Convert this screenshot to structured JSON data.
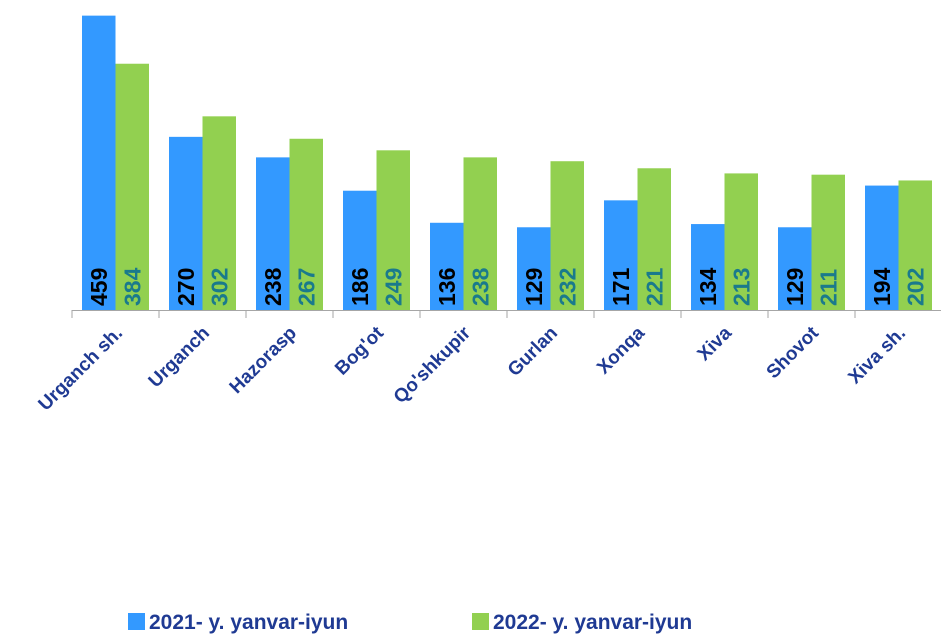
{
  "chart_data": {
    "type": "bar",
    "categories": [
      "Urganch sh.",
      "Urganch",
      "Hazorasp",
      "Bog'ot",
      "Qo'shkupir",
      "Gurlan",
      "Xonqa",
      "Xiva",
      "Shovot",
      "Xiva sh."
    ],
    "series": [
      {
        "name": "2021- y. yanvar-iyun",
        "color": "#3399ff",
        "label_color": "#000000",
        "values": [
          459,
          270,
          238,
          186,
          136,
          129,
          171,
          134,
          129,
          194
        ]
      },
      {
        "name": "2022- y. yanvar-iyun",
        "color": "#92d050",
        "label_color": "#1a7a8c",
        "values": [
          384,
          302,
          267,
          249,
          238,
          232,
          221,
          213,
          211,
          202
        ]
      }
    ],
    "ylim": [
      0,
      460
    ],
    "legend": "bottom"
  }
}
